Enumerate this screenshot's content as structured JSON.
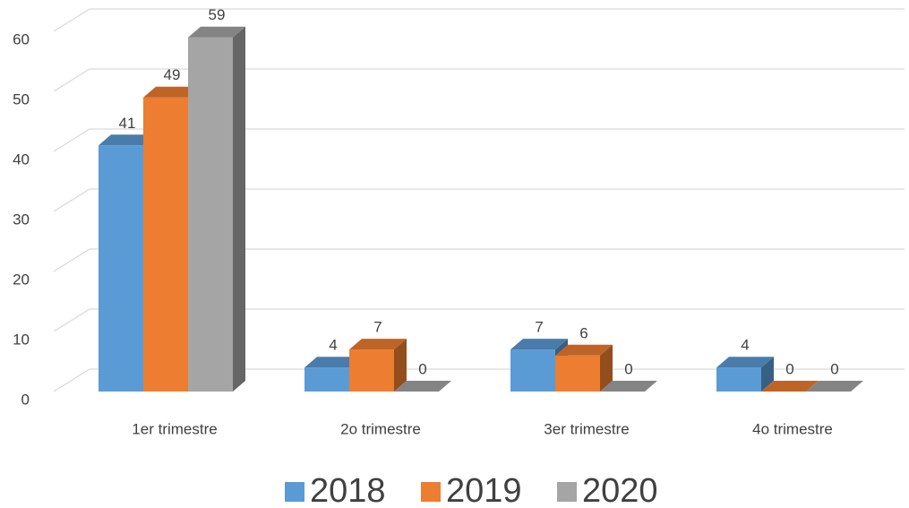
{
  "chart_data": {
    "type": "bar3d",
    "categories": [
      "1er trimestre",
      "2o trimestre",
      "3er trimestre",
      "4o trimestre"
    ],
    "series": [
      {
        "name": "2018",
        "color": "#5b9bd5",
        "values": [
          41,
          4,
          7,
          4
        ]
      },
      {
        "name": "2019",
        "color": "#ed7d31",
        "values": [
          49,
          7,
          6,
          0
        ]
      },
      {
        "name": "2020",
        "color": "#a5a5a5",
        "values": [
          59,
          0,
          0,
          0
        ]
      }
    ],
    "ylim": [
      0,
      60
    ],
    "yticks": [
      0,
      10,
      20,
      30,
      40,
      50,
      60
    ],
    "grid": true,
    "legend": "bottom"
  }
}
